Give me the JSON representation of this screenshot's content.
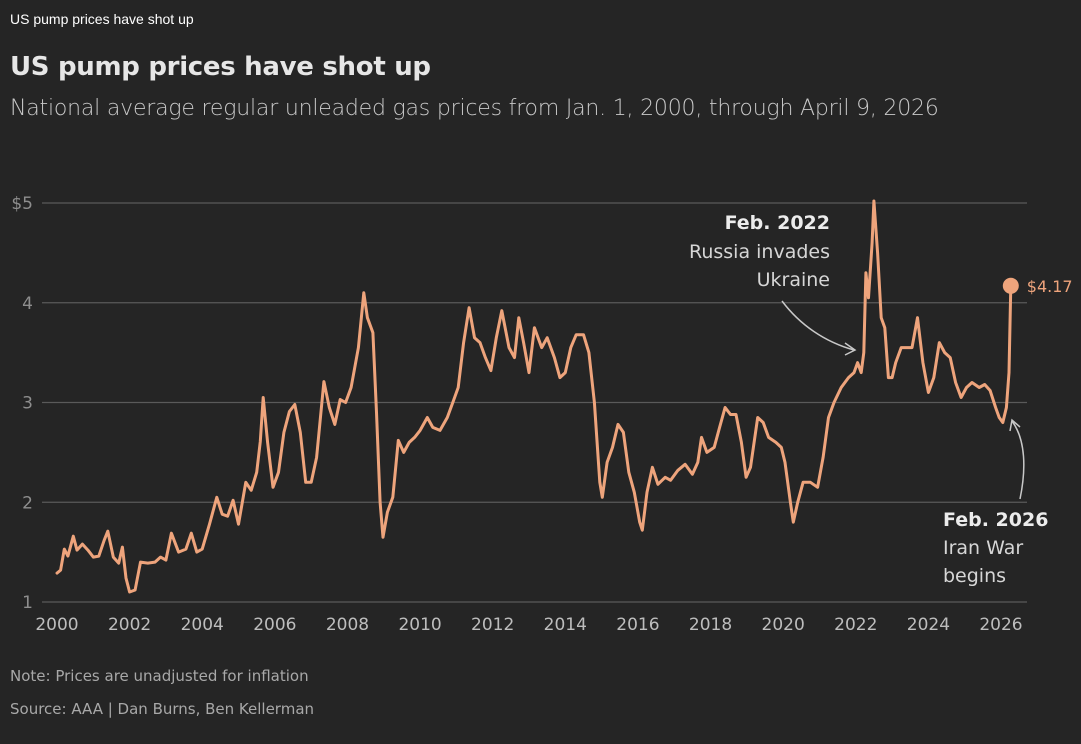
{
  "page": {
    "tab_title": "US pump prices have shot up",
    "headline": "US pump prices have shot up",
    "subtitle": "National average regular unleaded gas prices from Jan. 1, 2000, through April 9, 2026",
    "note": "Note: Prices are unadjusted for inflation",
    "source": "Source: AAA | Dan Burns, Ben Kellerman"
  },
  "colors": {
    "background": "#252525",
    "line": "#eea47c",
    "grid": "#5a5a5a",
    "annotation_arrow": "#c8c8c8"
  },
  "chart_data": {
    "type": "line",
    "title": "US pump prices have shot up",
    "subtitle": "National average regular unleaded gas prices from Jan. 1, 2000, through April 9, 2026",
    "xlabel": "",
    "ylabel": "",
    "xlim": [
      2000,
      2026.5
    ],
    "ylim": [
      1,
      5
    ],
    "grid": true,
    "legend": "none",
    "y_ticks": [
      {
        "value": 1,
        "label": "1"
      },
      {
        "value": 2,
        "label": "2"
      },
      {
        "value": 3,
        "label": "3"
      },
      {
        "value": 4,
        "label": "4"
      },
      {
        "value": 5,
        "label": "$5"
      }
    ],
    "x_ticks": [
      {
        "value": 2000,
        "label": "2000"
      },
      {
        "value": 2002,
        "label": "2002"
      },
      {
        "value": 2004,
        "label": "2004"
      },
      {
        "value": 2006,
        "label": "2006"
      },
      {
        "value": 2008,
        "label": "2008"
      },
      {
        "value": 2010,
        "label": "2010"
      },
      {
        "value": 2012,
        "label": "2012"
      },
      {
        "value": 2014,
        "label": "2014"
      },
      {
        "value": 2016,
        "label": "2016"
      },
      {
        "value": 2018,
        "label": "2018"
      },
      {
        "value": 2020,
        "label": "2020"
      },
      {
        "value": 2022,
        "label": "2022"
      },
      {
        "value": 2024,
        "label": "2024"
      },
      {
        "value": 2026,
        "label": "2026"
      }
    ],
    "series": [
      {
        "name": "National average regular unleaded gas price ($/gal)",
        "points": [
          [
            2000.0,
            1.29
          ],
          [
            2000.1,
            1.32
          ],
          [
            2000.2,
            1.53
          ],
          [
            2000.3,
            1.46
          ],
          [
            2000.45,
            1.66
          ],
          [
            2000.55,
            1.52
          ],
          [
            2000.7,
            1.58
          ],
          [
            2000.85,
            1.52
          ],
          [
            2001.0,
            1.45
          ],
          [
            2001.15,
            1.46
          ],
          [
            2001.3,
            1.62
          ],
          [
            2001.4,
            1.71
          ],
          [
            2001.55,
            1.45
          ],
          [
            2001.7,
            1.39
          ],
          [
            2001.8,
            1.55
          ],
          [
            2001.9,
            1.24
          ],
          [
            2002.0,
            1.1
          ],
          [
            2002.15,
            1.12
          ],
          [
            2002.3,
            1.4
          ],
          [
            2002.5,
            1.39
          ],
          [
            2002.7,
            1.4
          ],
          [
            2002.85,
            1.45
          ],
          [
            2003.0,
            1.42
          ],
          [
            2003.15,
            1.69
          ],
          [
            2003.35,
            1.5
          ],
          [
            2003.55,
            1.53
          ],
          [
            2003.7,
            1.69
          ],
          [
            2003.85,
            1.5
          ],
          [
            2004.0,
            1.53
          ],
          [
            2004.2,
            1.78
          ],
          [
            2004.4,
            2.05
          ],
          [
            2004.55,
            1.88
          ],
          [
            2004.7,
            1.86
          ],
          [
            2004.85,
            2.02
          ],
          [
            2005.0,
            1.78
          ],
          [
            2005.2,
            2.2
          ],
          [
            2005.35,
            2.12
          ],
          [
            2005.5,
            2.3
          ],
          [
            2005.6,
            2.61
          ],
          [
            2005.68,
            3.05
          ],
          [
            2005.8,
            2.6
          ],
          [
            2005.95,
            2.15
          ],
          [
            2006.1,
            2.3
          ],
          [
            2006.25,
            2.7
          ],
          [
            2006.4,
            2.91
          ],
          [
            2006.55,
            2.98
          ],
          [
            2006.7,
            2.7
          ],
          [
            2006.85,
            2.2
          ],
          [
            2007.0,
            2.2
          ],
          [
            2007.15,
            2.45
          ],
          [
            2007.35,
            3.21
          ],
          [
            2007.5,
            2.95
          ],
          [
            2007.65,
            2.78
          ],
          [
            2007.8,
            3.03
          ],
          [
            2007.95,
            3.0
          ],
          [
            2008.1,
            3.15
          ],
          [
            2008.3,
            3.55
          ],
          [
            2008.45,
            4.1
          ],
          [
            2008.55,
            3.85
          ],
          [
            2008.7,
            3.7
          ],
          [
            2008.8,
            2.9
          ],
          [
            2008.9,
            2.0
          ],
          [
            2008.98,
            1.65
          ],
          [
            2009.1,
            1.9
          ],
          [
            2009.25,
            2.05
          ],
          [
            2009.4,
            2.62
          ],
          [
            2009.55,
            2.5
          ],
          [
            2009.7,
            2.6
          ],
          [
            2009.85,
            2.65
          ],
          [
            2010.0,
            2.72
          ],
          [
            2010.2,
            2.85
          ],
          [
            2010.35,
            2.75
          ],
          [
            2010.55,
            2.72
          ],
          [
            2010.75,
            2.85
          ],
          [
            2010.9,
            3.0
          ],
          [
            2011.05,
            3.15
          ],
          [
            2011.2,
            3.6
          ],
          [
            2011.35,
            3.95
          ],
          [
            2011.5,
            3.65
          ],
          [
            2011.65,
            3.6
          ],
          [
            2011.8,
            3.45
          ],
          [
            2011.95,
            3.32
          ],
          [
            2012.1,
            3.65
          ],
          [
            2012.25,
            3.92
          ],
          [
            2012.45,
            3.55
          ],
          [
            2012.6,
            3.45
          ],
          [
            2012.72,
            3.85
          ],
          [
            2012.85,
            3.6
          ],
          [
            2013.0,
            3.3
          ],
          [
            2013.15,
            3.75
          ],
          [
            2013.35,
            3.55
          ],
          [
            2013.5,
            3.65
          ],
          [
            2013.7,
            3.45
          ],
          [
            2013.85,
            3.25
          ],
          [
            2014.0,
            3.3
          ],
          [
            2014.15,
            3.55
          ],
          [
            2014.3,
            3.68
          ],
          [
            2014.5,
            3.68
          ],
          [
            2014.65,
            3.5
          ],
          [
            2014.8,
            3.0
          ],
          [
            2014.95,
            2.2
          ],
          [
            2015.02,
            2.05
          ],
          [
            2015.15,
            2.4
          ],
          [
            2015.3,
            2.55
          ],
          [
            2015.45,
            2.78
          ],
          [
            2015.6,
            2.7
          ],
          [
            2015.75,
            2.3
          ],
          [
            2015.9,
            2.1
          ],
          [
            2016.05,
            1.8
          ],
          [
            2016.12,
            1.72
          ],
          [
            2016.25,
            2.1
          ],
          [
            2016.4,
            2.35
          ],
          [
            2016.55,
            2.18
          ],
          [
            2016.75,
            2.25
          ],
          [
            2016.9,
            2.22
          ],
          [
            2017.1,
            2.32
          ],
          [
            2017.3,
            2.38
          ],
          [
            2017.5,
            2.28
          ],
          [
            2017.65,
            2.4
          ],
          [
            2017.75,
            2.65
          ],
          [
            2017.9,
            2.5
          ],
          [
            2018.1,
            2.55
          ],
          [
            2018.25,
            2.75
          ],
          [
            2018.4,
            2.95
          ],
          [
            2018.55,
            2.88
          ],
          [
            2018.7,
            2.88
          ],
          [
            2018.85,
            2.6
          ],
          [
            2018.98,
            2.25
          ],
          [
            2019.1,
            2.35
          ],
          [
            2019.3,
            2.85
          ],
          [
            2019.45,
            2.8
          ],
          [
            2019.6,
            2.65
          ],
          [
            2019.8,
            2.6
          ],
          [
            2019.95,
            2.55
          ],
          [
            2020.05,
            2.4
          ],
          [
            2020.2,
            2.0
          ],
          [
            2020.28,
            1.8
          ],
          [
            2020.4,
            2.0
          ],
          [
            2020.55,
            2.2
          ],
          [
            2020.75,
            2.2
          ],
          [
            2020.95,
            2.15
          ],
          [
            2021.1,
            2.45
          ],
          [
            2021.25,
            2.85
          ],
          [
            2021.4,
            3.0
          ],
          [
            2021.6,
            3.15
          ],
          [
            2021.8,
            3.25
          ],
          [
            2021.95,
            3.3
          ],
          [
            2022.05,
            3.4
          ],
          [
            2022.15,
            3.3
          ],
          [
            2022.22,
            3.5
          ],
          [
            2022.28,
            4.3
          ],
          [
            2022.35,
            4.05
          ],
          [
            2022.45,
            4.6
          ],
          [
            2022.5,
            5.02
          ],
          [
            2022.6,
            4.5
          ],
          [
            2022.7,
            3.85
          ],
          [
            2022.8,
            3.75
          ],
          [
            2022.9,
            3.25
          ],
          [
            2023.0,
            3.25
          ],
          [
            2023.1,
            3.4
          ],
          [
            2023.25,
            3.55
          ],
          [
            2023.4,
            3.55
          ],
          [
            2023.55,
            3.55
          ],
          [
            2023.7,
            3.85
          ],
          [
            2023.85,
            3.4
          ],
          [
            2024.0,
            3.1
          ],
          [
            2024.15,
            3.25
          ],
          [
            2024.3,
            3.6
          ],
          [
            2024.45,
            3.5
          ],
          [
            2024.6,
            3.45
          ],
          [
            2024.75,
            3.2
          ],
          [
            2024.9,
            3.05
          ],
          [
            2025.05,
            3.15
          ],
          [
            2025.2,
            3.2
          ],
          [
            2025.4,
            3.15
          ],
          [
            2025.55,
            3.18
          ],
          [
            2025.7,
            3.12
          ],
          [
            2025.85,
            2.95
          ],
          [
            2025.95,
            2.85
          ],
          [
            2026.05,
            2.8
          ],
          [
            2026.15,
            2.95
          ],
          [
            2026.22,
            3.3
          ],
          [
            2026.27,
            4.17
          ]
        ]
      }
    ],
    "end_point": {
      "x": 2026.27,
      "value": 4.17,
      "label": "$4.17"
    },
    "annotations": [
      {
        "date_label": "Feb. 2022",
        "lines": [
          "Russia invades",
          "Ukraine"
        ],
        "target": {
          "x": 2022.1,
          "value": 3.5
        }
      },
      {
        "date_label": "Feb. 2026",
        "lines": [
          "Iran War",
          "begins"
        ],
        "target": {
          "x": 2026.1,
          "value": 2.83
        }
      }
    ]
  }
}
